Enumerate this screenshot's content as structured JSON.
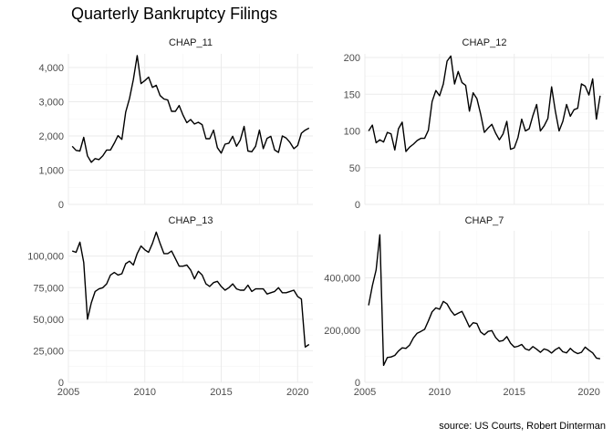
{
  "page": {
    "title": "Quarterly Bankruptcy Filings",
    "caption": "source: US Courts, Robert Dinterman"
  },
  "chart_data": {
    "type": "line",
    "facets": true,
    "grid": "on",
    "xlim": [
      2005,
      2021
    ],
    "x_ticks": [
      2005,
      2010,
      2015,
      2020
    ],
    "panels": [
      {
        "name": "CHAP_11",
        "ylim": [
          0,
          4400
        ],
        "y_ticks": [
          0,
          1000,
          2000,
          3000,
          4000
        ],
        "y_tick_labels": [
          "0",
          "1,000",
          "2,000",
          "3,000",
          "4,000"
        ],
        "x": [
          2005.25,
          2005.5,
          2005.75,
          2006.0,
          2006.25,
          2006.5,
          2006.75,
          2007.0,
          2007.25,
          2007.5,
          2007.75,
          2008.0,
          2008.25,
          2008.5,
          2008.75,
          2009.0,
          2009.25,
          2009.5,
          2009.75,
          2010.0,
          2010.25,
          2010.5,
          2010.75,
          2011.0,
          2011.25,
          2011.5,
          2011.75,
          2012.0,
          2012.25,
          2012.5,
          2012.75,
          2013.0,
          2013.25,
          2013.5,
          2013.75,
          2014.0,
          2014.25,
          2014.5,
          2014.75,
          2015.0,
          2015.25,
          2015.5,
          2015.75,
          2016.0,
          2016.25,
          2016.5,
          2016.75,
          2017.0,
          2017.25,
          2017.5,
          2017.75,
          2018.0,
          2018.25,
          2018.5,
          2018.75,
          2019.0,
          2019.25,
          2019.5,
          2019.75,
          2020.0,
          2020.25,
          2020.5,
          2020.75
        ],
        "values": [
          1700,
          1580,
          1560,
          1960,
          1420,
          1230,
          1340,
          1310,
          1420,
          1590,
          1590,
          1790,
          2010,
          1900,
          2700,
          3100,
          3650,
          4350,
          3530,
          3620,
          3720,
          3420,
          3480,
          3180,
          3080,
          3050,
          2720,
          2720,
          2890,
          2610,
          2390,
          2480,
          2350,
          2400,
          2330,
          1920,
          1920,
          2170,
          1660,
          1500,
          1760,
          1790,
          1990,
          1700,
          1880,
          2280,
          1560,
          1540,
          1700,
          2170,
          1630,
          1930,
          1990,
          1590,
          1520,
          2000,
          1940,
          1810,
          1630,
          1720,
          2080,
          2170,
          2230
        ]
      },
      {
        "name": "CHAP_12",
        "ylim": [
          0,
          205
        ],
        "y_ticks": [
          0,
          50,
          100,
          150,
          200
        ],
        "y_tick_labels": [
          "0",
          "50",
          "100",
          "150",
          "200"
        ],
        "x": [
          2005.25,
          2005.5,
          2005.75,
          2006.0,
          2006.25,
          2006.5,
          2006.75,
          2007.0,
          2007.25,
          2007.5,
          2007.75,
          2008.0,
          2008.25,
          2008.5,
          2008.75,
          2009.0,
          2009.25,
          2009.5,
          2009.75,
          2010.0,
          2010.25,
          2010.5,
          2010.75,
          2011.0,
          2011.25,
          2011.5,
          2011.75,
          2012.0,
          2012.25,
          2012.5,
          2012.75,
          2013.0,
          2013.25,
          2013.5,
          2013.75,
          2014.0,
          2014.25,
          2014.5,
          2014.75,
          2015.0,
          2015.25,
          2015.5,
          2015.75,
          2016.0,
          2016.25,
          2016.5,
          2016.75,
          2017.0,
          2017.25,
          2017.5,
          2017.75,
          2018.0,
          2018.25,
          2018.5,
          2018.75,
          2019.0,
          2019.25,
          2019.5,
          2019.75,
          2020.0,
          2020.25,
          2020.5,
          2020.75
        ],
        "values": [
          100,
          108,
          84,
          88,
          85,
          98,
          96,
          74,
          103,
          112,
          72,
          78,
          82,
          87,
          90,
          90,
          101,
          140,
          155,
          148,
          164,
          195,
          202,
          164,
          181,
          166,
          162,
          127,
          152,
          144,
          123,
          98,
          104,
          109,
          97,
          88,
          96,
          113,
          75,
          77,
          91,
          116,
          100,
          103,
          121,
          136,
          100,
          107,
          117,
          160,
          127,
          100,
          113,
          136,
          120,
          129,
          131,
          164,
          161,
          149,
          171,
          116,
          148
        ]
      },
      {
        "name": "CHAP_13",
        "ylim": [
          0,
          120000
        ],
        "y_ticks": [
          0,
          25000,
          50000,
          75000,
          100000
        ],
        "y_tick_labels": [
          "0",
          "25,000",
          "50,000",
          "75,000",
          "100,000"
        ],
        "x": [
          2005.25,
          2005.5,
          2005.75,
          2006.0,
          2006.25,
          2006.5,
          2006.75,
          2007.0,
          2007.25,
          2007.5,
          2007.75,
          2008.0,
          2008.25,
          2008.5,
          2008.75,
          2009.0,
          2009.25,
          2009.5,
          2009.75,
          2010.0,
          2010.25,
          2010.5,
          2010.75,
          2011.0,
          2011.25,
          2011.5,
          2011.75,
          2012.0,
          2012.25,
          2012.5,
          2012.75,
          2013.0,
          2013.25,
          2013.5,
          2013.75,
          2014.0,
          2014.25,
          2014.5,
          2014.75,
          2015.0,
          2015.25,
          2015.5,
          2015.75,
          2016.0,
          2016.25,
          2016.5,
          2016.75,
          2017.0,
          2017.25,
          2017.5,
          2017.75,
          2018.0,
          2018.25,
          2018.5,
          2018.75,
          2019.0,
          2019.25,
          2019.5,
          2019.75,
          2020.0,
          2020.25,
          2020.5,
          2020.75
        ],
        "values": [
          104000,
          103000,
          111000,
          95000,
          50000,
          63000,
          72000,
          74000,
          75000,
          78000,
          85000,
          87000,
          85000,
          86000,
          94000,
          96000,
          93000,
          102000,
          108000,
          105000,
          103000,
          110000,
          119000,
          110000,
          102000,
          102000,
          104000,
          98000,
          92000,
          92000,
          93000,
          89000,
          82000,
          88000,
          85000,
          78000,
          76000,
          79000,
          80000,
          76000,
          73000,
          75000,
          78000,
          74000,
          73000,
          73000,
          77000,
          72000,
          74000,
          74000,
          74000,
          70000,
          71000,
          72000,
          75000,
          71000,
          71000,
          72000,
          73000,
          68000,
          66000,
          28000,
          30000
        ]
      },
      {
        "name": "CHAP_7",
        "ylim": [
          0,
          580000
        ],
        "y_ticks": [
          0,
          200000,
          400000
        ],
        "y_tick_labels": [
          "0",
          "200,000",
          "400,000"
        ],
        "x": [
          2005.25,
          2005.5,
          2005.75,
          2006.0,
          2006.25,
          2006.5,
          2006.75,
          2007.0,
          2007.25,
          2007.5,
          2007.75,
          2008.0,
          2008.25,
          2008.5,
          2008.75,
          2009.0,
          2009.25,
          2009.5,
          2009.75,
          2010.0,
          2010.25,
          2010.5,
          2010.75,
          2011.0,
          2011.25,
          2011.5,
          2011.75,
          2012.0,
          2012.25,
          2012.5,
          2012.75,
          2013.0,
          2013.25,
          2013.5,
          2013.75,
          2014.0,
          2014.25,
          2014.5,
          2014.75,
          2015.0,
          2015.25,
          2015.5,
          2015.75,
          2016.0,
          2016.25,
          2016.5,
          2016.75,
          2017.0,
          2017.25,
          2017.5,
          2017.75,
          2018.0,
          2018.25,
          2018.5,
          2018.75,
          2019.0,
          2019.25,
          2019.5,
          2019.75,
          2020.0,
          2020.25,
          2020.5,
          2020.75
        ],
        "values": [
          295000,
          370000,
          430000,
          565000,
          65000,
          95000,
          97000,
          103000,
          120000,
          132000,
          130000,
          143000,
          170000,
          188000,
          195000,
          203000,
          235000,
          270000,
          285000,
          280000,
          310000,
          300000,
          275000,
          257000,
          265000,
          272000,
          243000,
          212000,
          228000,
          225000,
          193000,
          182000,
          195000,
          198000,
          172000,
          157000,
          160000,
          175000,
          150000,
          135000,
          138000,
          145000,
          128000,
          123000,
          137000,
          127000,
          115000,
          128000,
          123000,
          112000,
          125000,
          133000,
          117000,
          113000,
          130000,
          117000,
          110000,
          115000,
          135000,
          123000,
          113000,
          93000,
          90000
        ]
      }
    ]
  }
}
